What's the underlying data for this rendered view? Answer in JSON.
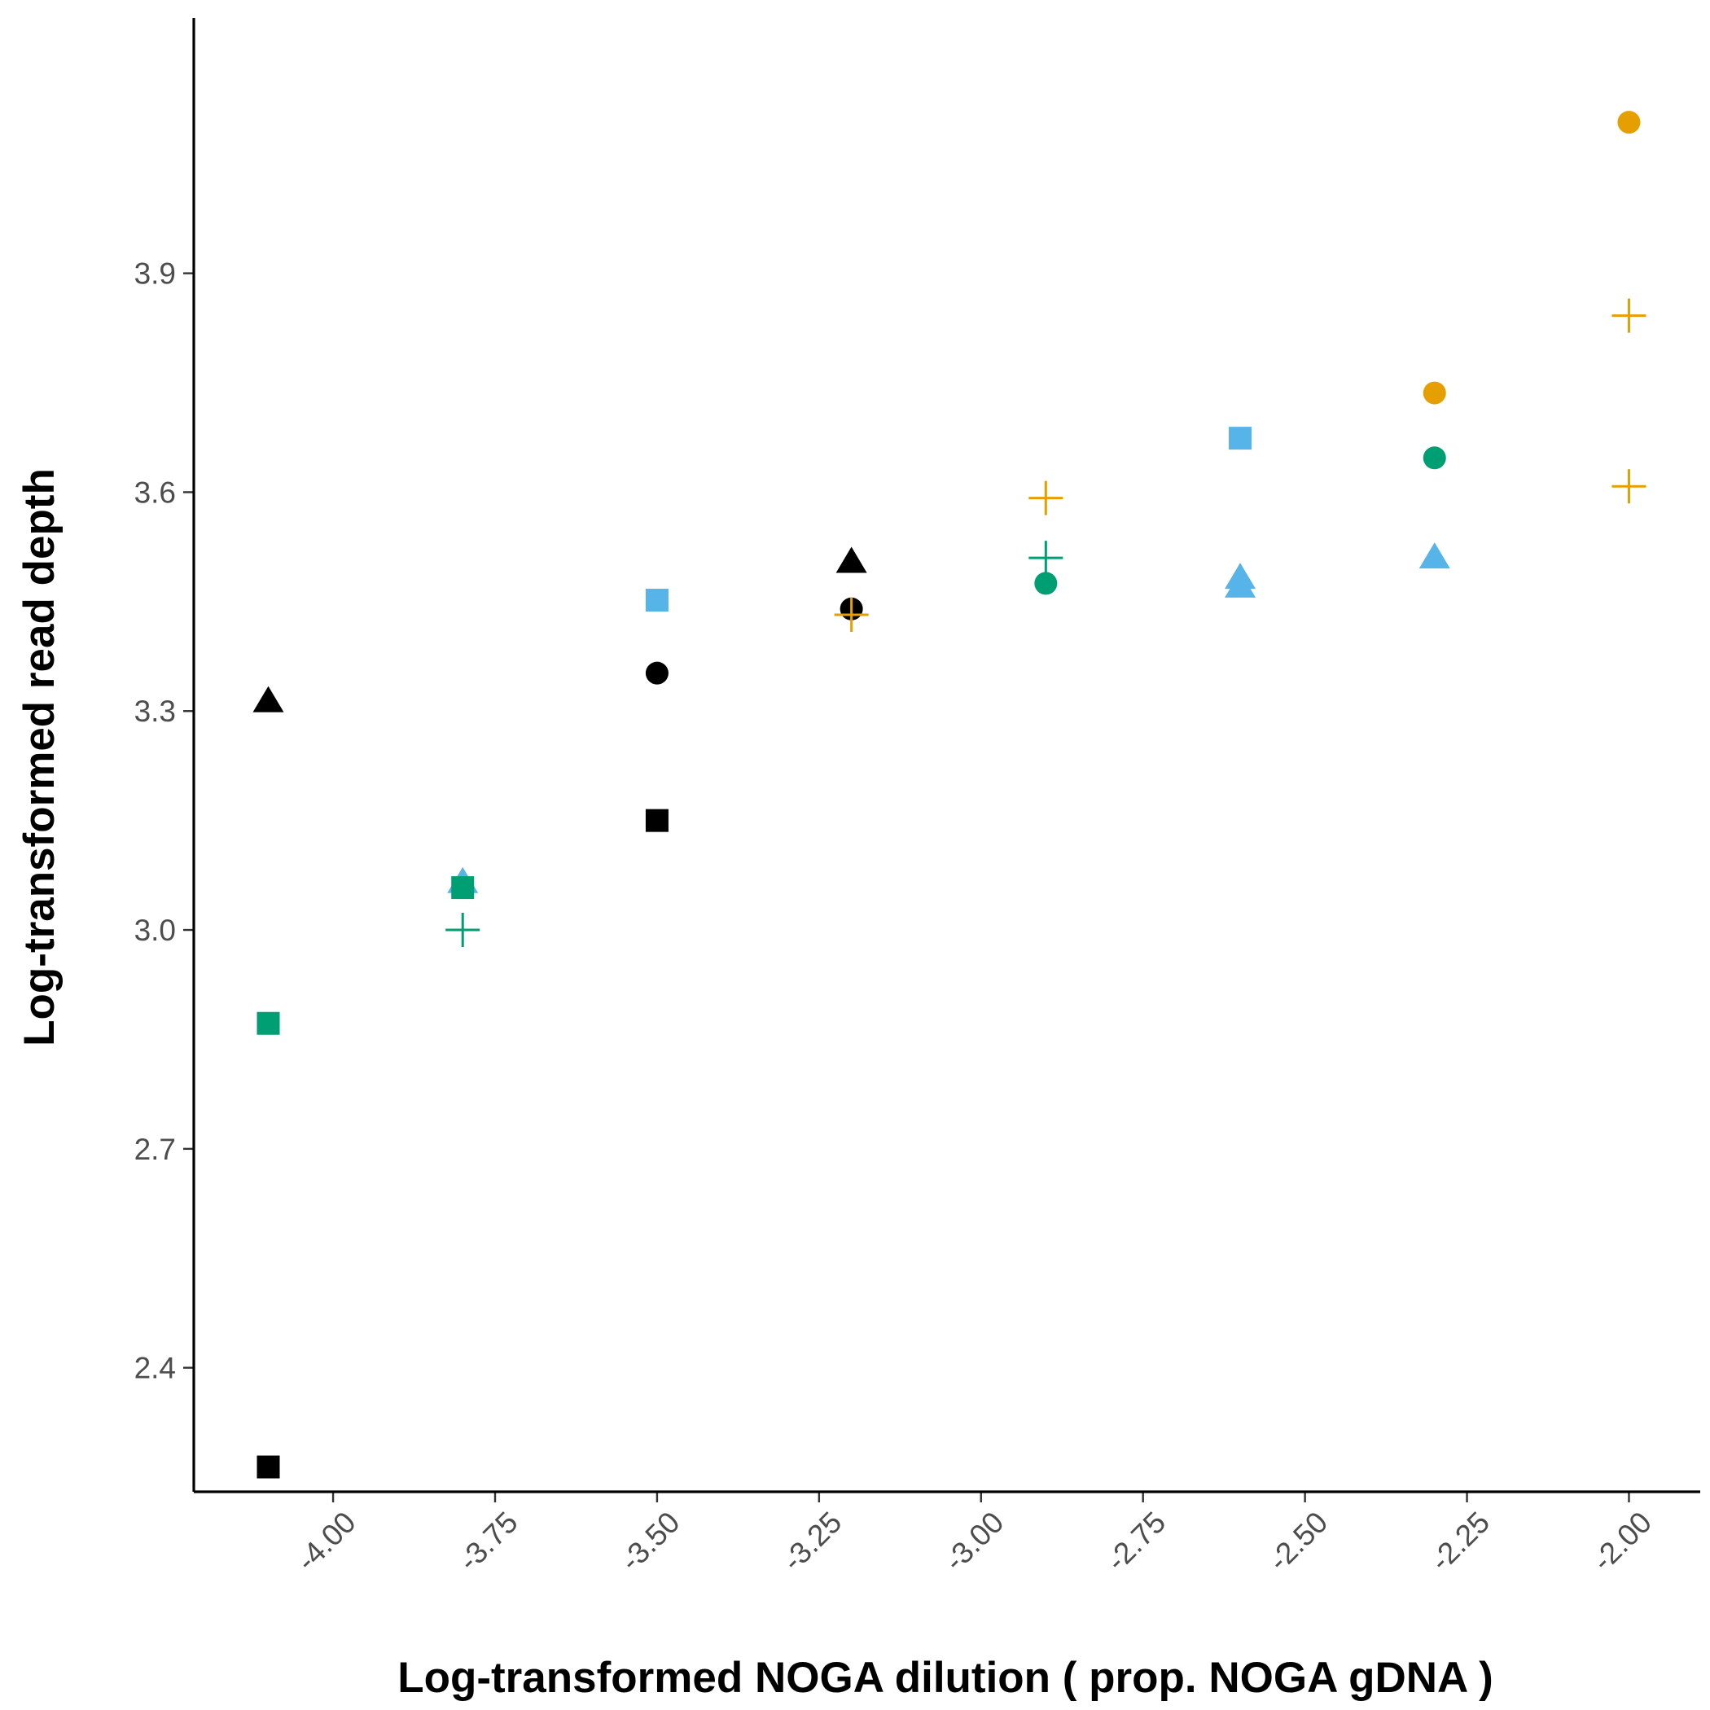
{
  "chart_data": {
    "type": "scatter",
    "title": "",
    "xlabel": "Log-transformed NOGA dilution ( prop. NOGA gDNA )",
    "ylabel": "Log-transformed read depth",
    "xlim": [
      -4.215,
      -1.89
    ],
    "ylim": [
      2.23,
      4.25
    ],
    "x_ticks": [
      -4.0,
      -3.75,
      -3.5,
      -3.25,
      -3.0,
      -2.75,
      -2.5,
      -2.25,
      -2.0
    ],
    "x_tick_labels": [
      "-4.00",
      "-3.75",
      "-3.50",
      "-3.25",
      "-3.00",
      "-2.75",
      "-2.50",
      "-2.25",
      "-2.00"
    ],
    "y_ticks": [
      2.4,
      2.7,
      3.0,
      3.3,
      3.6,
      3.9
    ],
    "y_tick_labels": [
      "2.4",
      "2.7",
      "3.0",
      "3.3",
      "3.6",
      "3.9"
    ],
    "grid": false,
    "legend": "none",
    "points": [
      {
        "x": -4.1,
        "y": 2.264,
        "shape": "square",
        "color": "#000000"
      },
      {
        "x": -4.1,
        "y": 3.313,
        "shape": "triangle",
        "color": "#000000"
      },
      {
        "x": -4.1,
        "y": 2.872,
        "shape": "square",
        "color": "#009E73"
      },
      {
        "x": -3.8,
        "y": 3.065,
        "shape": "triangle",
        "color": "#56B4E9"
      },
      {
        "x": -3.8,
        "y": 3.058,
        "shape": "square",
        "color": "#009E73"
      },
      {
        "x": -3.8,
        "y": 3.0,
        "shape": "cross",
        "color": "#009E73"
      },
      {
        "x": -3.5,
        "y": 3.452,
        "shape": "square",
        "color": "#56B4E9"
      },
      {
        "x": -3.5,
        "y": 3.352,
        "shape": "circle",
        "color": "#000000"
      },
      {
        "x": -3.5,
        "y": 3.15,
        "shape": "square",
        "color": "#000000"
      },
      {
        "x": -3.2,
        "y": 3.504,
        "shape": "triangle",
        "color": "#000000"
      },
      {
        "x": -3.2,
        "y": 3.44,
        "shape": "circle",
        "color": "#000000"
      },
      {
        "x": -3.2,
        "y": 3.432,
        "shape": "cross",
        "color": "#E69F00"
      },
      {
        "x": -2.9,
        "y": 3.592,
        "shape": "cross",
        "color": "#E69F00"
      },
      {
        "x": -2.9,
        "y": 3.51,
        "shape": "cross",
        "color": "#009E73"
      },
      {
        "x": -2.9,
        "y": 3.475,
        "shape": "circle",
        "color": "#009E73"
      },
      {
        "x": -2.6,
        "y": 3.674,
        "shape": "square",
        "color": "#56B4E9"
      },
      {
        "x": -2.6,
        "y": 3.482,
        "shape": "triangle",
        "color": "#56B4E9"
      },
      {
        "x": -2.6,
        "y": 3.47,
        "shape": "triangle",
        "color": "#56B4E9"
      },
      {
        "x": -2.3,
        "y": 3.736,
        "shape": "circle",
        "color": "#E69F00"
      },
      {
        "x": -2.3,
        "y": 3.647,
        "shape": "circle",
        "color": "#009E73"
      },
      {
        "x": -2.3,
        "y": 3.51,
        "shape": "triangle",
        "color": "#56B4E9"
      },
      {
        "x": -2.0,
        "y": 4.107,
        "shape": "circle",
        "color": "#E69F00"
      },
      {
        "x": -2.0,
        "y": 3.842,
        "shape": "cross",
        "color": "#E69F00"
      },
      {
        "x": -2.0,
        "y": 3.608,
        "shape": "cross",
        "color": "#E69F00"
      }
    ]
  }
}
